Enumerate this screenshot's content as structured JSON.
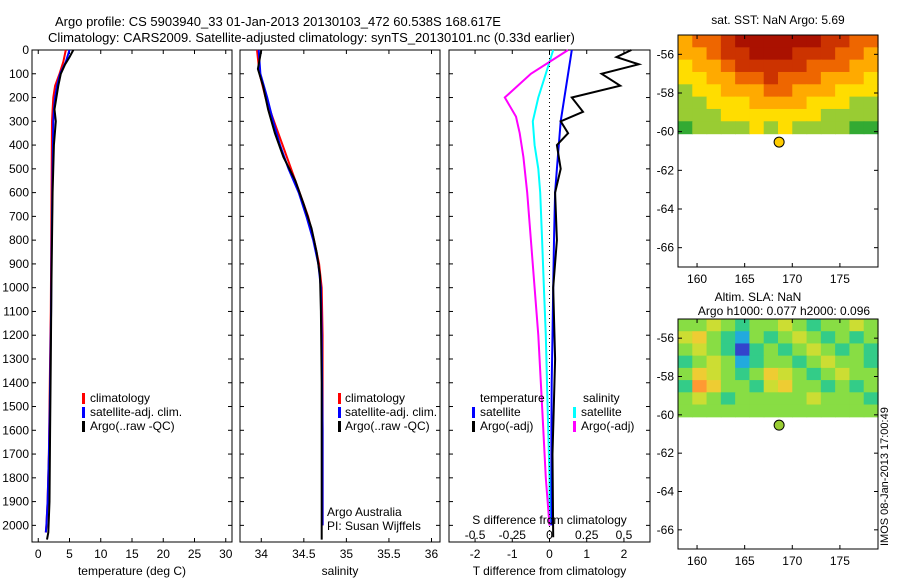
{
  "header": {
    "line1": "Argo profile: CS 5903940_33 01-Jan-2013 20130103_472 60.538S 168.617E",
    "line2": "Climatology: CARS2009. Satellite-adjusted climatology: synTS_20130101.nc (0.33d earlier)"
  },
  "side_stamp": "IMOS 08-Jan-2013 17:00:49",
  "chart_data": [
    {
      "id": "temperature",
      "type": "line",
      "xlabel": "temperature (deg C)",
      "xlim": [
        -1,
        31
      ],
      "xticks": [
        0,
        5,
        10,
        15,
        20,
        25,
        30
      ],
      "ylim": [
        2070,
        0
      ],
      "yticks": [
        0,
        100,
        200,
        300,
        400,
        500,
        600,
        700,
        800,
        900,
        1000,
        1100,
        1200,
        1300,
        1400,
        1500,
        1600,
        1700,
        1800,
        1900,
        2000
      ],
      "legend": [
        "climatology",
        "satellite-adj. clim.",
        "Argo(..raw -QC)"
      ],
      "series": [
        {
          "name": "climatology",
          "color": "#ff0000",
          "x": [
            4.4,
            4.0,
            3.4,
            2.7,
            2.4,
            2.3,
            2.2,
            2.15,
            2.1,
            2.05,
            2.0,
            1.9,
            1.8,
            1.7,
            1.5,
            1.3,
            1.2
          ],
          "y": [
            0,
            50,
            100,
            150,
            200,
            250,
            300,
            500,
            700,
            900,
            1100,
            1300,
            1500,
            1700,
            1900,
            2000,
            2030
          ]
        },
        {
          "name": "satellite-adj. clim.",
          "color": "#0000ff",
          "x": [
            5.0,
            4.4,
            3.5,
            3.0,
            2.7,
            2.5,
            2.4,
            2.3,
            2.2,
            2.1,
            2.05,
            1.95,
            1.85,
            1.7,
            1.5,
            1.3,
            1.2
          ],
          "y": [
            0,
            50,
            100,
            150,
            200,
            250,
            300,
            500,
            700,
            900,
            1100,
            1300,
            1500,
            1700,
            1900,
            2000,
            2030
          ]
        },
        {
          "name": "Argo(..raw -QC)",
          "color": "#000000",
          "x": [
            5.6,
            5.0,
            4.3,
            3.6,
            3.2,
            2.9,
            2.6,
            2.8,
            2.5,
            2.3,
            2.2,
            2.1,
            2.0,
            1.9,
            1.8,
            1.6,
            1.4
          ],
          "y": [
            0,
            30,
            60,
            100,
            150,
            200,
            250,
            300,
            400,
            600,
            800,
            1000,
            1300,
            1600,
            1900,
            2030,
            2060
          ]
        }
      ]
    },
    {
      "id": "salinity",
      "type": "line",
      "xlabel": "salinity",
      "xlim": [
        33.75,
        36.1
      ],
      "xticks": [
        34,
        34.5,
        35,
        35.5,
        36
      ],
      "ylim": [
        2070,
        0
      ],
      "legend": [
        "climatology",
        "satellite-adj. clim.",
        "Argo(..raw -QC)"
      ],
      "annotation": [
        "Argo Australia",
        "PI: Susan Wijffels"
      ],
      "series": [
        {
          "name": "climatology",
          "color": "#ff0000",
          "x": [
            33.95,
            33.98,
            34.05,
            34.15,
            34.25,
            34.35,
            34.45,
            34.55,
            34.62,
            34.68,
            34.71,
            34.72,
            34.72,
            34.72
          ],
          "y": [
            0,
            100,
            200,
            300,
            400,
            500,
            600,
            700,
            800,
            900,
            1000,
            1200,
            1600,
            2000
          ]
        },
        {
          "name": "satellite-adj. clim.",
          "color": "#0000ff",
          "x": [
            33.97,
            33.99,
            34.07,
            34.14,
            34.22,
            34.32,
            34.44,
            34.53,
            34.61,
            34.67,
            34.7,
            34.71,
            34.72,
            34.72
          ],
          "y": [
            0,
            100,
            200,
            300,
            400,
            500,
            600,
            700,
            800,
            900,
            1000,
            1200,
            1600,
            2000
          ]
        },
        {
          "name": "Argo(..raw -QC)",
          "color": "#000000",
          "x": [
            34.0,
            33.96,
            34.02,
            34.08,
            34.16,
            34.26,
            34.4,
            34.5,
            34.59,
            34.65,
            34.69,
            34.7,
            34.71,
            34.71,
            34.71
          ],
          "y": [
            0,
            80,
            150,
            250,
            350,
            450,
            550,
            650,
            750,
            850,
            950,
            1100,
            1400,
            1700,
            2060
          ]
        }
      ]
    },
    {
      "id": "difference",
      "type": "line",
      "xlabel": "T difference from climatology",
      "xlabel_top": "S difference from climatology",
      "xlim": [
        -2.7,
        2.7
      ],
      "xticks": [
        -2,
        -1,
        0,
        1,
        2
      ],
      "top_ticks": [
        "-0.5",
        "-0.25",
        "0",
        "0.25",
        "0.5"
      ],
      "top_tick_x": [
        -2,
        -1,
        0,
        1,
        2
      ],
      "ylim": [
        2070,
        0
      ],
      "legend_left_title": "temperature",
      "legend_right_title": "salinity",
      "legend": [
        "satellite",
        "Argo(-adj)",
        "satellite",
        "Argo(-adj)"
      ],
      "series": [
        {
          "name": "satellite",
          "color": "#0000ff",
          "x": [
            0.6,
            0.5,
            0.4,
            0.3,
            0.25,
            0.2,
            0.15,
            0.12,
            0.1,
            0.08,
            0.06,
            0.05,
            0.05,
            0.05
          ],
          "y": [
            0,
            100,
            200,
            300,
            400,
            500,
            600,
            800,
            1000,
            1200,
            1400,
            1600,
            1800,
            2000
          ]
        },
        {
          "name": "Argo(-adj)",
          "color": "#000000",
          "x": [
            2.2,
            1.8,
            2.4,
            1.4,
            1.9,
            0.6,
            0.9,
            0.3,
            0.5,
            0.2,
            0.3,
            0.15,
            0.2,
            0.1,
            0.15,
            0.08,
            0.1
          ],
          "y": [
            0,
            30,
            60,
            100,
            150,
            200,
            260,
            300,
            350,
            400,
            500,
            600,
            800,
            1000,
            1300,
            1700,
            2050
          ]
        },
        {
          "name": "satellite",
          "color": "#00ffff",
          "x": [
            0.1,
            -0.1,
            -0.3,
            -0.45,
            -0.4,
            -0.3,
            -0.25,
            -0.2,
            -0.15,
            -0.1,
            -0.05,
            0,
            0
          ],
          "y": [
            0,
            100,
            200,
            300,
            400,
            500,
            600,
            800,
            1000,
            1200,
            1500,
            1800,
            2000
          ]
        },
        {
          "name": "Argo(-adj)",
          "color": "#ff00ff",
          "x": [
            0.5,
            -0.5,
            -1.2,
            -0.9,
            -0.8,
            -0.7,
            -0.6,
            -0.5,
            -0.4,
            -0.3,
            -0.2,
            -0.1,
            0
          ],
          "y": [
            0,
            100,
            200,
            280,
            350,
            450,
            600,
            800,
            1000,
            1200,
            1500,
            1800,
            2000
          ]
        }
      ]
    },
    {
      "id": "sst-map",
      "type": "heatmap",
      "title": "sat. SST: NaN Argo: 5.69",
      "xlim": [
        158,
        179
      ],
      "xticks": [
        160,
        165,
        170,
        175
      ],
      "ylim": [
        -67,
        -55
      ],
      "yticks": [
        -56,
        -58,
        -60,
        -62,
        -64,
        -66
      ],
      "lon_range": [
        158,
        179
      ],
      "lat_range": [
        -60.1,
        -55
      ],
      "grid_rows": 8,
      "grid_cols": 14,
      "palette": [
        "#33aa33",
        "#99cc33",
        "#ffdd00",
        "#ffaa00",
        "#ee6600",
        "#cc3300",
        "#aa1100"
      ],
      "values": [
        [
          3,
          4,
          4,
          5,
          6,
          6,
          6,
          6,
          6,
          6,
          5,
          5,
          4,
          4
        ],
        [
          3,
          3,
          4,
          5,
          5,
          6,
          6,
          6,
          5,
          5,
          5,
          4,
          4,
          3
        ],
        [
          2,
          3,
          3,
          4,
          5,
          5,
          5,
          5,
          5,
          4,
          4,
          4,
          3,
          3
        ],
        [
          2,
          2,
          3,
          3,
          4,
          4,
          5,
          4,
          4,
          4,
          3,
          3,
          3,
          2
        ],
        [
          1,
          2,
          2,
          3,
          3,
          3,
          4,
          4,
          3,
          3,
          3,
          2,
          2,
          2
        ],
        [
          1,
          1,
          2,
          2,
          2,
          3,
          3,
          3,
          3,
          2,
          2,
          2,
          1,
          1
        ],
        [
          1,
          1,
          1,
          2,
          2,
          2,
          2,
          2,
          2,
          2,
          1,
          1,
          1,
          1
        ],
        [
          0,
          1,
          1,
          1,
          1,
          2,
          1,
          2,
          1,
          1,
          1,
          1,
          0,
          0
        ]
      ],
      "argo_point": [
        168.617,
        -60.538
      ],
      "argo_color": "#ffcc00"
    },
    {
      "id": "sla-map",
      "type": "heatmap",
      "title_line1": "Altim. SLA: NaN",
      "title_line2": "Argo h1000: 0.077 h2000: 0.096",
      "xlim": [
        158,
        179
      ],
      "xticks": [
        160,
        165,
        170,
        175
      ],
      "ylim": [
        -67,
        -55
      ],
      "yticks": [
        -56,
        -58,
        -60,
        -62,
        -64,
        -66
      ],
      "lon_range": [
        158,
        179
      ],
      "lat_range": [
        -60.1,
        -55
      ],
      "grid_rows": 8,
      "grid_cols": 14,
      "palette": [
        "#3344cc",
        "#22aadd",
        "#33cc88",
        "#88dd44",
        "#ccdd33",
        "#eecc33",
        "#ff9933"
      ],
      "values": [
        [
          3,
          3,
          4,
          3,
          2,
          3,
          3,
          4,
          3,
          2,
          3,
          3,
          4,
          3
        ],
        [
          4,
          5,
          3,
          2,
          1,
          3,
          2,
          3,
          4,
          3,
          2,
          3,
          2,
          3
        ],
        [
          3,
          4,
          3,
          2,
          0,
          2,
          3,
          2,
          3,
          4,
          3,
          2,
          3,
          2
        ],
        [
          2,
          3,
          4,
          3,
          1,
          2,
          3,
          3,
          2,
          3,
          4,
          3,
          3,
          2
        ],
        [
          3,
          5,
          4,
          3,
          2,
          3,
          5,
          4,
          3,
          2,
          3,
          4,
          3,
          3
        ],
        [
          2,
          6,
          5,
          3,
          3,
          2,
          4,
          5,
          3,
          3,
          2,
          3,
          2,
          3
        ],
        [
          3,
          4,
          3,
          2,
          3,
          3,
          3,
          3,
          3,
          4,
          3,
          3,
          3,
          2
        ],
        [
          3,
          3,
          3,
          3,
          3,
          3,
          3,
          3,
          3,
          3,
          3,
          3,
          3,
          3
        ]
      ],
      "argo_point": [
        168.617,
        -60.538
      ],
      "argo_color": "#99cc33"
    }
  ]
}
